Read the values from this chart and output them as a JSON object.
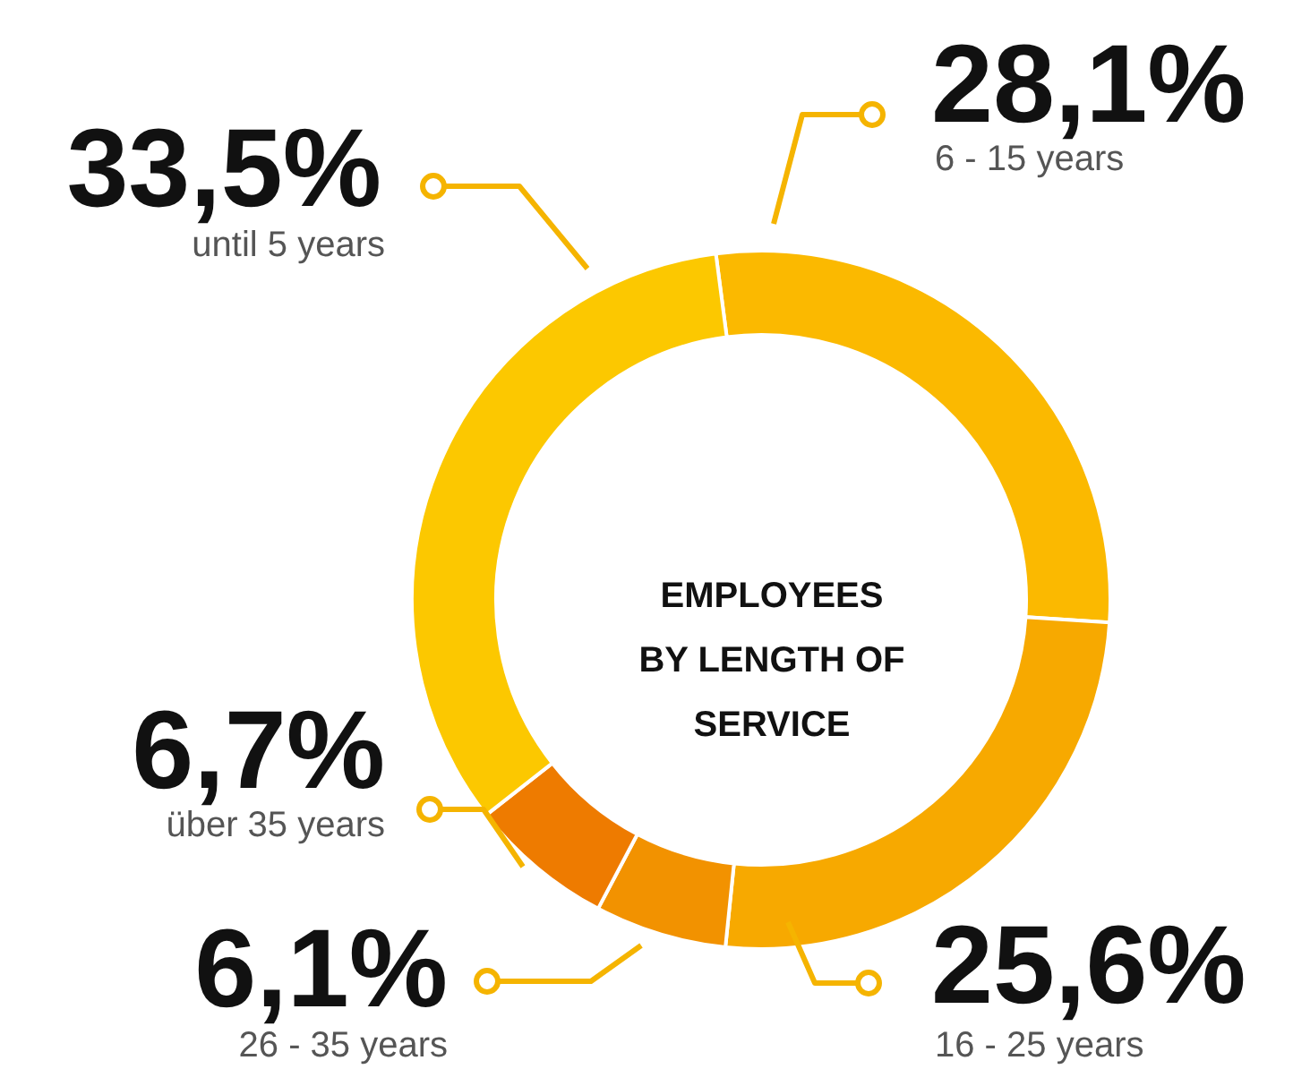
{
  "chart_data": {
    "type": "donut",
    "title": "EMPLOYEES\nBY LENGTH OF\nSERVICE",
    "categories": [
      "6 - 15 years",
      "16 - 25 years",
      "26 - 35 years",
      "über 35 years",
      "until 5 years"
    ],
    "values": [
      28.1,
      25.6,
      6.1,
      6.7,
      33.5
    ],
    "value_labels": [
      "28,1%",
      "25,6%",
      "6,1%",
      "6,7%",
      "33,5%"
    ],
    "colors": [
      "#fbb900",
      "#f7a900",
      "#f29200",
      "#ee7b00",
      "#fcc800"
    ]
  }
}
